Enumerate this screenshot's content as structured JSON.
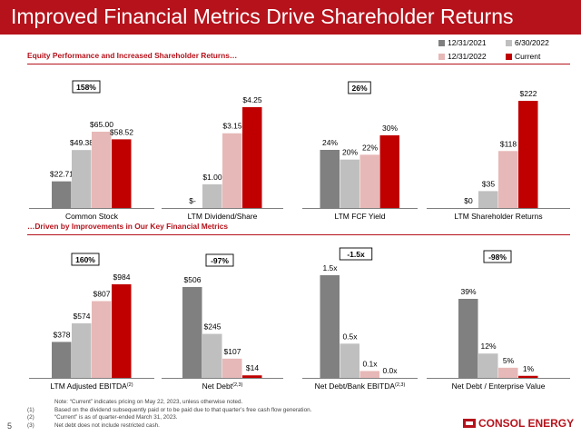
{
  "title": "Improved Financial Metrics Drive Shareholder Returns",
  "section1": "Equity Performance and Increased Shareholder Returns…",
  "section2": "…Driven by Improvements in Our Key Financial Metrics",
  "legend": [
    {
      "name": "12/31/2021",
      "color": "#808080"
    },
    {
      "name": "6/30/2022",
      "color": "#bfbfbf"
    },
    {
      "name": "12/31/2022",
      "color": "#e6b8b7"
    },
    {
      "name": "Current",
      "color": "#c00000"
    }
  ],
  "chart_data": [
    {
      "type": "bar",
      "label": "Common Stock",
      "sup": "",
      "badge": "158%",
      "values": [
        22.71,
        49.38,
        65.0,
        58.52
      ],
      "data_labels": [
        "$22.71",
        "$49.38",
        "$65.00",
        "$58.52"
      ]
    },
    {
      "type": "bar",
      "label": "LTM Dividend/Share",
      "sup": "",
      "badge": "",
      "values": [
        0,
        1.0,
        3.15,
        4.25
      ],
      "data_labels": [
        "$-",
        "$1.00",
        "$3.15",
        "$4.25"
      ]
    },
    {
      "type": "bar",
      "label": "LTM FCF Yield",
      "sup": "",
      "badge": "26%",
      "values": [
        24,
        20,
        22,
        30
      ],
      "data_labels": [
        "24%",
        "20%",
        "22%",
        "30%"
      ]
    },
    {
      "type": "bar",
      "label": "LTM Shareholder Returns",
      "sup": "",
      "badge": "",
      "values": [
        0,
        35,
        118,
        222
      ],
      "data_labels": [
        "$0",
        "$35",
        "$118",
        "$222"
      ]
    },
    {
      "type": "bar",
      "label": "LTM Adjusted EBITDA",
      "sup": "(2)",
      "badge": "160%",
      "values": [
        378,
        574,
        807,
        984
      ],
      "data_labels": [
        "$378",
        "$574",
        "$807",
        "$984"
      ]
    },
    {
      "type": "bar",
      "label": "Net Debt",
      "sup": "(2,3)",
      "badge": "-97%",
      "values": [
        506,
        245,
        107,
        14
      ],
      "data_labels": [
        "$506",
        "$245",
        "$107",
        "$14"
      ]
    },
    {
      "type": "bar",
      "label": "Net Debt/Bank EBITDA",
      "sup": "(2,3)",
      "badge": "-1.5x",
      "values": [
        1.5,
        0.5,
        0.1,
        0.0
      ],
      "data_labels": [
        "1.5x",
        "0.5x",
        "0.1x",
        "0.0x"
      ]
    },
    {
      "type": "bar",
      "label": "Net Debt / Enterprise Value",
      "sup": "",
      "badge": "-98%",
      "values": [
        39,
        12,
        5,
        1
      ],
      "data_labels": [
        "39%",
        "12%",
        "5%",
        "1%"
      ]
    }
  ],
  "notes": [
    {
      "key": "",
      "text": "Note: “Current” indicates pricing on May 22, 2023, unless otherwise noted."
    },
    {
      "key": "(1)",
      "text": "Based on the dividend subsequently paid or to be paid due to that quarter’s free cash flow generation."
    },
    {
      "key": "(2)",
      "text": "“Current” is as of quarter-ended March 31, 2023."
    },
    {
      "key": "(3)",
      "text": "Net debt does not include restricted cash."
    }
  ],
  "page_number": "5",
  "logo_text": "CONSOL ENERGY"
}
